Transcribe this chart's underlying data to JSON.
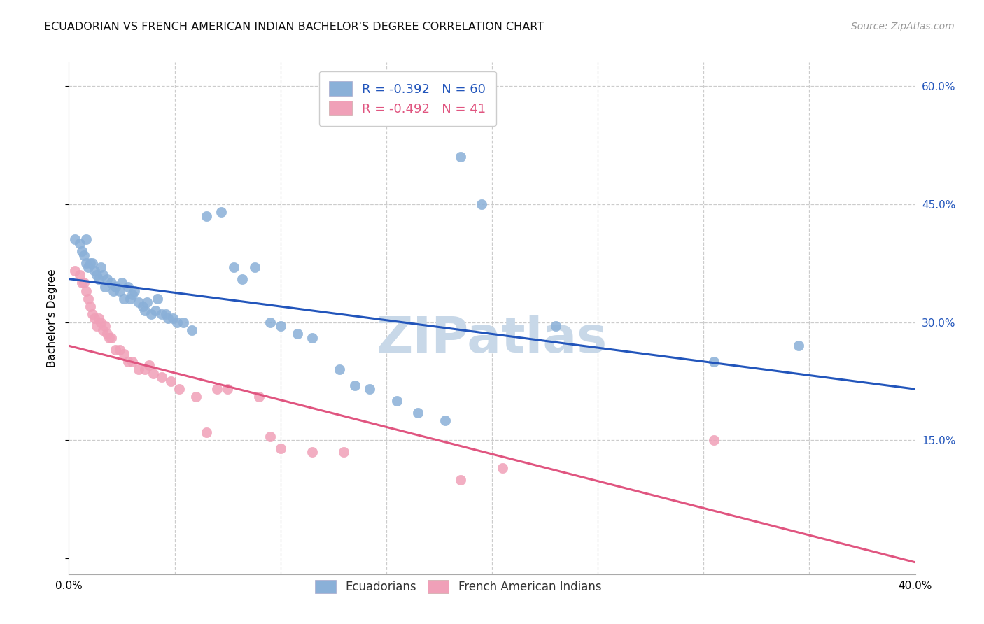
{
  "title": "ECUADORIAN VS FRENCH AMERICAN INDIAN BACHELOR'S DEGREE CORRELATION CHART",
  "source": "Source: ZipAtlas.com",
  "ylabel": "Bachelor's Degree",
  "xlim": [
    0.0,
    0.4
  ],
  "ylim": [
    -0.02,
    0.63
  ],
  "blue_R": -0.392,
  "blue_N": 60,
  "pink_R": -0.492,
  "pink_N": 41,
  "blue_color": "#8ab0d8",
  "pink_color": "#f0a0b8",
  "blue_line_color": "#2255bb",
  "pink_line_color": "#e05580",
  "watermark": "ZIPatlas",
  "legend_label_blue": "Ecuadorians",
  "legend_label_pink": "French American Indians",
  "blue_scatter_x": [
    0.003,
    0.005,
    0.006,
    0.007,
    0.008,
    0.008,
    0.009,
    0.01,
    0.011,
    0.012,
    0.013,
    0.014,
    0.015,
    0.016,
    0.017,
    0.018,
    0.02,
    0.021,
    0.022,
    0.024,
    0.025,
    0.026,
    0.028,
    0.029,
    0.03,
    0.031,
    0.033,
    0.035,
    0.036,
    0.037,
    0.039,
    0.041,
    0.042,
    0.044,
    0.046,
    0.047,
    0.049,
    0.051,
    0.054,
    0.058,
    0.065,
    0.072,
    0.078,
    0.082,
    0.088,
    0.095,
    0.1,
    0.108,
    0.115,
    0.128,
    0.135,
    0.142,
    0.155,
    0.165,
    0.178,
    0.185,
    0.195,
    0.23,
    0.305,
    0.345
  ],
  "blue_scatter_y": [
    0.405,
    0.4,
    0.39,
    0.385,
    0.375,
    0.405,
    0.37,
    0.375,
    0.375,
    0.365,
    0.36,
    0.355,
    0.37,
    0.36,
    0.345,
    0.355,
    0.35,
    0.34,
    0.345,
    0.34,
    0.35,
    0.33,
    0.345,
    0.33,
    0.335,
    0.34,
    0.325,
    0.32,
    0.315,
    0.325,
    0.31,
    0.315,
    0.33,
    0.31,
    0.31,
    0.305,
    0.305,
    0.3,
    0.3,
    0.29,
    0.435,
    0.44,
    0.37,
    0.355,
    0.37,
    0.3,
    0.295,
    0.285,
    0.28,
    0.24,
    0.22,
    0.215,
    0.2,
    0.185,
    0.175,
    0.51,
    0.45,
    0.295,
    0.25,
    0.27
  ],
  "pink_scatter_x": [
    0.003,
    0.005,
    0.006,
    0.007,
    0.008,
    0.009,
    0.01,
    0.011,
    0.012,
    0.013,
    0.014,
    0.015,
    0.016,
    0.017,
    0.018,
    0.019,
    0.02,
    0.022,
    0.024,
    0.026,
    0.028,
    0.03,
    0.033,
    0.036,
    0.038,
    0.04,
    0.044,
    0.048,
    0.052,
    0.06,
    0.065,
    0.07,
    0.075,
    0.09,
    0.095,
    0.1,
    0.115,
    0.13,
    0.185,
    0.205,
    0.305
  ],
  "pink_scatter_y": [
    0.365,
    0.36,
    0.35,
    0.35,
    0.34,
    0.33,
    0.32,
    0.31,
    0.305,
    0.295,
    0.305,
    0.3,
    0.29,
    0.295,
    0.285,
    0.28,
    0.28,
    0.265,
    0.265,
    0.26,
    0.25,
    0.25,
    0.24,
    0.24,
    0.245,
    0.235,
    0.23,
    0.225,
    0.215,
    0.205,
    0.16,
    0.215,
    0.215,
    0.205,
    0.155,
    0.14,
    0.135,
    0.135,
    0.1,
    0.115,
    0.15
  ],
  "blue_trend_x": [
    0.0,
    0.4
  ],
  "blue_trend_y": [
    0.355,
    0.215
  ],
  "pink_trend_x": [
    0.0,
    0.4
  ],
  "pink_trend_y": [
    0.27,
    -0.005
  ],
  "grid_color": "#cccccc",
  "background_color": "#ffffff",
  "title_fontsize": 11.5,
  "axis_label_fontsize": 11,
  "tick_fontsize": 11,
  "watermark_fontsize": 52,
  "watermark_color": "#c8d8e8",
  "source_fontsize": 10,
  "source_color": "#999999",
  "right_tick_color": "#2255bb",
  "yticks": [
    0.0,
    0.15,
    0.3,
    0.45,
    0.6
  ],
  "ytick_labels": [
    "",
    "15.0%",
    "30.0%",
    "45.0%",
    "60.0%"
  ],
  "xticks": [
    0.0,
    0.05,
    0.1,
    0.15,
    0.2,
    0.25,
    0.3,
    0.35,
    0.4
  ],
  "xtick_labels": [
    "0.0%",
    "",
    "",
    "",
    "",
    "",
    "",
    "",
    "40.0%"
  ]
}
